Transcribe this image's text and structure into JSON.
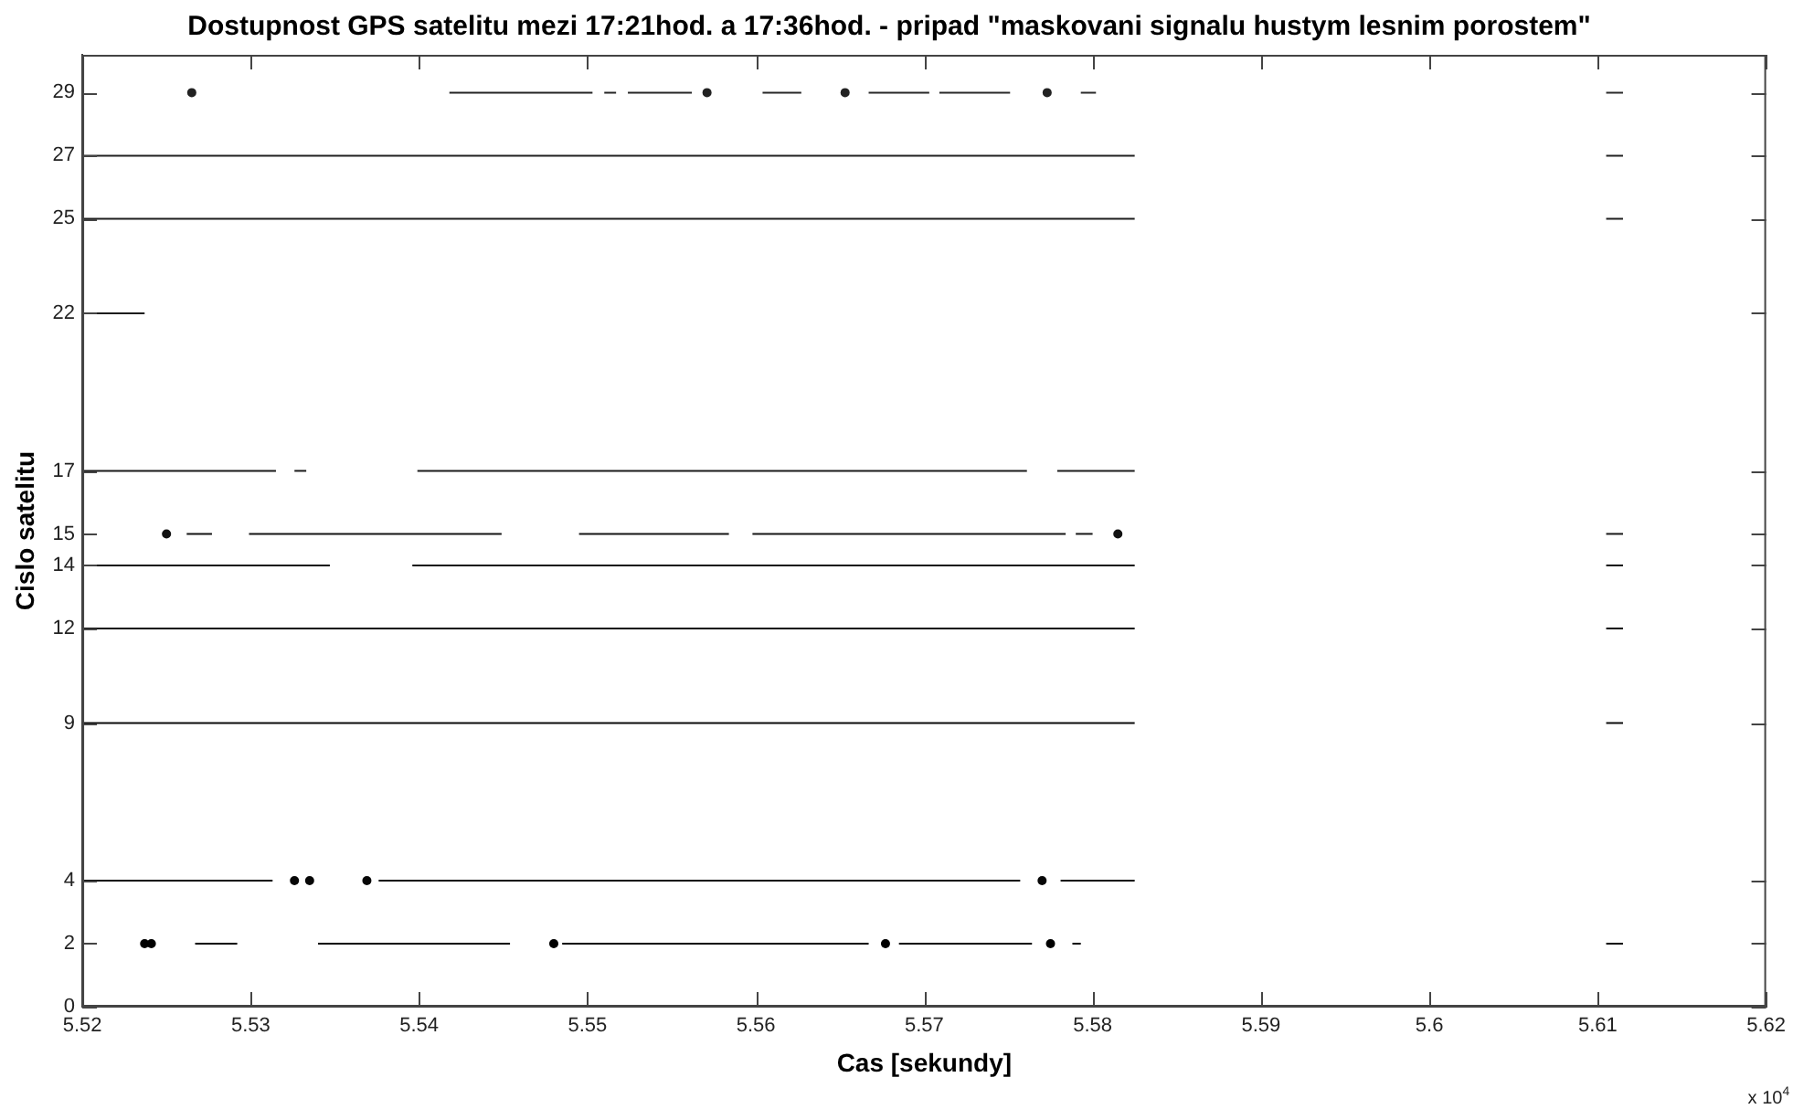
{
  "chart_data": {
    "type": "line",
    "title": "Dostupnost GPS satelitu mezi 17:21hod. a 17:36hod. - pripad \"maskovani signalu hustym lesnim porostem\"",
    "xlabel": "Cas [sekundy]",
    "ylabel": "Cislo satelitu",
    "annotations": [
      "x 10$^{4}$"
    ],
    "xlim": [
      5.52,
      5.62
    ],
    "xticks": [
      5.52,
      5.53,
      5.54,
      5.55,
      5.56,
      5.57,
      5.58,
      5.59,
      5.6,
      5.61,
      5.62
    ],
    "ylim": [
      0,
      30.2
    ],
    "yticks": [
      0,
      2,
      4,
      9,
      12,
      14,
      15,
      17,
      22,
      25,
      27,
      29
    ],
    "grid": false,
    "legend": false,
    "line_style": "solid",
    "series": [
      {
        "color": "#000000",
        "type": "scatter",
        "marker": "circle",
        "x": [
          5.5237,
          5.5241,
          5.548,
          5.5677,
          5.5775
        ],
        "values": [
          2,
          2,
          2,
          2,
          2
        ]
      },
      {
        "color": "#010101",
        "x": [
          5.5267,
          5.5292
        ],
        "values": [
          2,
          2
        ]
      },
      {
        "color": "#020202",
        "x": [
          5.534,
          5.5454
        ],
        "values": [
          2,
          2
        ]
      },
      {
        "color": "#030303",
        "x": [
          5.5485,
          5.5667
        ],
        "values": [
          2,
          2
        ]
      },
      {
        "color": "#040404",
        "x": [
          5.5685,
          5.5764
        ],
        "values": [
          2,
          2
        ]
      },
      {
        "color": "#050505",
        "x": [
          5.5788,
          5.5793
        ],
        "values": [
          2,
          2
        ]
      },
      {
        "color": "#060606",
        "x": [
          5.6105,
          5.6115
        ],
        "values": [
          2,
          2
        ]
      },
      {
        "color": "#070707",
        "type": "scatter",
        "marker": "circle",
        "x": [
          5.5326,
          5.5335,
          5.5369,
          5.577
        ],
        "values": [
          4,
          4,
          4,
          4
        ]
      },
      {
        "color": "#080808",
        "x": [
          5.52,
          5.5313
        ],
        "values": [
          4,
          4
        ]
      },
      {
        "color": "#090909",
        "x": [
          5.5376,
          5.5757
        ],
        "values": [
          4,
          4
        ]
      },
      {
        "color": "#0a0a0a",
        "x": [
          5.5781,
          5.5825
        ],
        "values": [
          4,
          4
        ]
      },
      {
        "color": "#0b0b0b",
        "x": [
          5.52,
          5.5825
        ],
        "values": [
          9,
          9
        ]
      },
      {
        "color": "#0c0c0c",
        "x": [
          5.6105,
          5.6115
        ],
        "values": [
          9,
          9
        ]
      },
      {
        "color": "#0d0d0d",
        "x": [
          5.52,
          5.5825
        ],
        "values": [
          12,
          12
        ]
      },
      {
        "color": "#0e0e0e",
        "x": [
          5.6105,
          5.6115
        ],
        "values": [
          12,
          12
        ]
      },
      {
        "color": "#0f0f0f",
        "x": [
          5.52,
          5.5347
        ],
        "values": [
          14,
          14
        ]
      },
      {
        "color": "#101010",
        "x": [
          5.5396,
          5.5825
        ],
        "values": [
          14,
          14
        ]
      },
      {
        "color": "#111111",
        "x": [
          5.6105,
          5.6115
        ],
        "values": [
          14,
          14
        ]
      },
      {
        "color": "#121212",
        "type": "scatter",
        "marker": "circle",
        "x": [
          5.525,
          5.5815
        ],
        "values": [
          15,
          15
        ]
      },
      {
        "color": "#131313",
        "x": [
          5.5262,
          5.5277
        ],
        "values": [
          15,
          15
        ]
      },
      {
        "color": "#141414",
        "x": [
          5.5299,
          5.5449
        ],
        "values": [
          15,
          15
        ]
      },
      {
        "color": "#151515",
        "x": [
          5.5495,
          5.5584
        ],
        "values": [
          15,
          15
        ]
      },
      {
        "color": "#161616",
        "x": [
          5.5598,
          5.5784
        ],
        "values": [
          15,
          15
        ]
      },
      {
        "color": "#171717",
        "x": [
          5.579,
          5.58
        ],
        "values": [
          15,
          15
        ]
      },
      {
        "color": "#181818",
        "x": [
          5.6105,
          5.6115
        ],
        "values": [
          15,
          15
        ]
      },
      {
        "color": "#191919",
        "x": [
          5.52,
          5.5315
        ],
        "values": [
          17,
          17
        ]
      },
      {
        "color": "#1a1a1a",
        "x": [
          5.5326,
          5.5333
        ],
        "values": [
          17,
          17
        ]
      },
      {
        "color": "#1b1b1b",
        "x": [
          5.5399,
          5.5761
        ],
        "values": [
          17,
          17
        ]
      },
      {
        "color": "#1c1c1c",
        "x": [
          5.5779,
          5.5825
        ],
        "values": [
          17,
          17
        ]
      },
      {
        "color": "#1d1d1d",
        "x": [
          5.52,
          5.5237
        ],
        "values": [
          22,
          22
        ]
      },
      {
        "color": "#1e1e1e",
        "x": [
          5.52,
          5.5825
        ],
        "values": [
          25,
          25
        ]
      },
      {
        "color": "#1f1f1f",
        "x": [
          5.6105,
          5.6115
        ],
        "values": [
          25,
          25
        ]
      },
      {
        "color": "#202020",
        "x": [
          5.52,
          5.5825
        ],
        "values": [
          27,
          27
        ]
      },
      {
        "color": "#212121",
        "x": [
          5.6105,
          5.6115
        ],
        "values": [
          27,
          27
        ]
      },
      {
        "color": "#222222",
        "type": "scatter",
        "marker": "circle",
        "x": [
          5.5265,
          5.5571,
          5.5653,
          5.5773
        ],
        "values": [
          29,
          29,
          29,
          29
        ]
      },
      {
        "color": "#232323",
        "x": [
          5.5418,
          5.5503
        ],
        "values": [
          29,
          29
        ]
      },
      {
        "color": "#242424",
        "x": [
          5.551,
          5.5517
        ],
        "values": [
          29,
          29
        ]
      },
      {
        "color": "#252525",
        "x": [
          5.5524,
          5.5562
        ],
        "values": [
          29,
          29
        ]
      },
      {
        "color": "#262626",
        "x": [
          5.5604,
          5.5627
        ],
        "values": [
          29,
          29
        ]
      },
      {
        "color": "#272727",
        "x": [
          5.5667,
          5.5703
        ],
        "values": [
          29,
          29
        ]
      },
      {
        "color": "#282828",
        "x": [
          5.5709,
          5.5751
        ],
        "values": [
          29,
          29
        ]
      },
      {
        "color": "#292929",
        "x": [
          5.5793,
          5.5802
        ],
        "values": [
          29,
          29
        ]
      },
      {
        "color": "#2a2a2a",
        "x": [
          5.6105,
          5.6115
        ],
        "values": [
          29,
          29
        ]
      }
    ]
  }
}
